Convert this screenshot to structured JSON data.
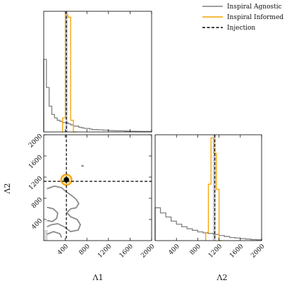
{
  "colors": {
    "agnostic": "#808080",
    "informed": "#f5a300",
    "injection": "#000000",
    "band": "#b9b9cc"
  },
  "legend": {
    "position": "top-right",
    "entries": [
      {
        "label": "Inspiral Agnostic",
        "color": "#808080",
        "style": "solid"
      },
      {
        "label": "Inspiral Informed",
        "color": "#f5a300",
        "style": "solid"
      },
      {
        "label": "Injection",
        "color": "#000000",
        "style": "dashed"
      }
    ]
  },
  "chart_data": {
    "type": "corner",
    "parameters": [
      "Λ1",
      "Λ2"
    ],
    "injection": {
      "Lambda1": 420,
      "Lambda2": 1120
    },
    "xlim": [
      0,
      2000
    ],
    "ylim": [
      0,
      2000
    ],
    "ticks": [
      400,
      800,
      1200,
      1600,
      2000
    ],
    "tick_labels": [
      "400",
      "800",
      "1200",
      "1600",
      "2000"
    ],
    "axis_labels": {
      "x1": "Λ1",
      "x2": "Λ2",
      "y2": "Λ2"
    },
    "lambda1_hist": {
      "agnostic": {
        "edges": [
          0,
          50,
          100,
          150,
          200,
          250,
          300,
          350,
          400,
          450,
          500,
          550,
          600,
          650,
          700,
          750,
          800,
          850,
          900,
          950,
          1000,
          1100,
          1200,
          1300,
          1400,
          1500,
          1600,
          1700,
          1800,
          2000
        ],
        "values": [
          0.62,
          0.38,
          0.22,
          0.15,
          0.12,
          0.1,
          0.09,
          0.08,
          0.08,
          0.07,
          0.06,
          0.05,
          0.05,
          0.04,
          0.035,
          0.03,
          0.03,
          0.025,
          0.02,
          0.02,
          0.018,
          0.015,
          0.012,
          0.01,
          0.01,
          0.008,
          0.006,
          0.005,
          0.004
        ]
      },
      "informed": {
        "edges": [
          350,
          400,
          450,
          500,
          550,
          600
        ],
        "values": [
          0.12,
          1.0,
          0.98,
          0.1,
          0.0
        ]
      }
    },
    "lambda2_hist": {
      "agnostic": {
        "edges": [
          0,
          100,
          200,
          300,
          400,
          500,
          600,
          700,
          800,
          900,
          1000,
          1100,
          1200,
          1300,
          1400,
          1500,
          1600,
          1700,
          1800,
          1900,
          2000
        ],
        "values": [
          0.32,
          0.27,
          0.23,
          0.19,
          0.16,
          0.135,
          0.115,
          0.1,
          0.085,
          0.075,
          0.07,
          0.06,
          0.05,
          0.04,
          0.03,
          0.025,
          0.02,
          0.015,
          0.01,
          0.008
        ]
      },
      "informed": {
        "edges": [
          950,
          1000,
          1050,
          1100,
          1150,
          1200,
          1250
        ],
        "values": [
          0.08,
          0.55,
          1.0,
          0.85,
          0.5,
          0.0
        ]
      }
    },
    "joint": {
      "informed_peak": [
        420,
        1150
      ],
      "agnostic_contours": [
        [
          [
            60,
            980
          ],
          [
            200,
            1030
          ],
          [
            330,
            1000
          ],
          [
            420,
            920
          ],
          [
            520,
            850
          ],
          [
            600,
            780
          ],
          [
            650,
            700
          ],
          [
            600,
            620
          ],
          [
            500,
            600
          ],
          [
            430,
            530
          ],
          [
            500,
            450
          ],
          [
            620,
            400
          ],
          [
            680,
            300
          ],
          [
            640,
            200
          ],
          [
            500,
            170
          ],
          [
            380,
            260
          ],
          [
            260,
            320
          ],
          [
            140,
            300
          ],
          [
            60,
            260
          ]
        ],
        [
          [
            60,
            630
          ],
          [
            180,
            600
          ],
          [
            260,
            520
          ],
          [
            240,
            420
          ],
          [
            160,
            360
          ],
          [
            60,
            380
          ]
        ],
        [
          [
            60,
            120
          ],
          [
            180,
            170
          ],
          [
            300,
            130
          ],
          [
            330,
            60
          ]
        ],
        [
          [
            700,
            1400
          ],
          [
            720,
            1420
          ],
          [
            740,
            1400
          ]
        ]
      ]
    }
  }
}
